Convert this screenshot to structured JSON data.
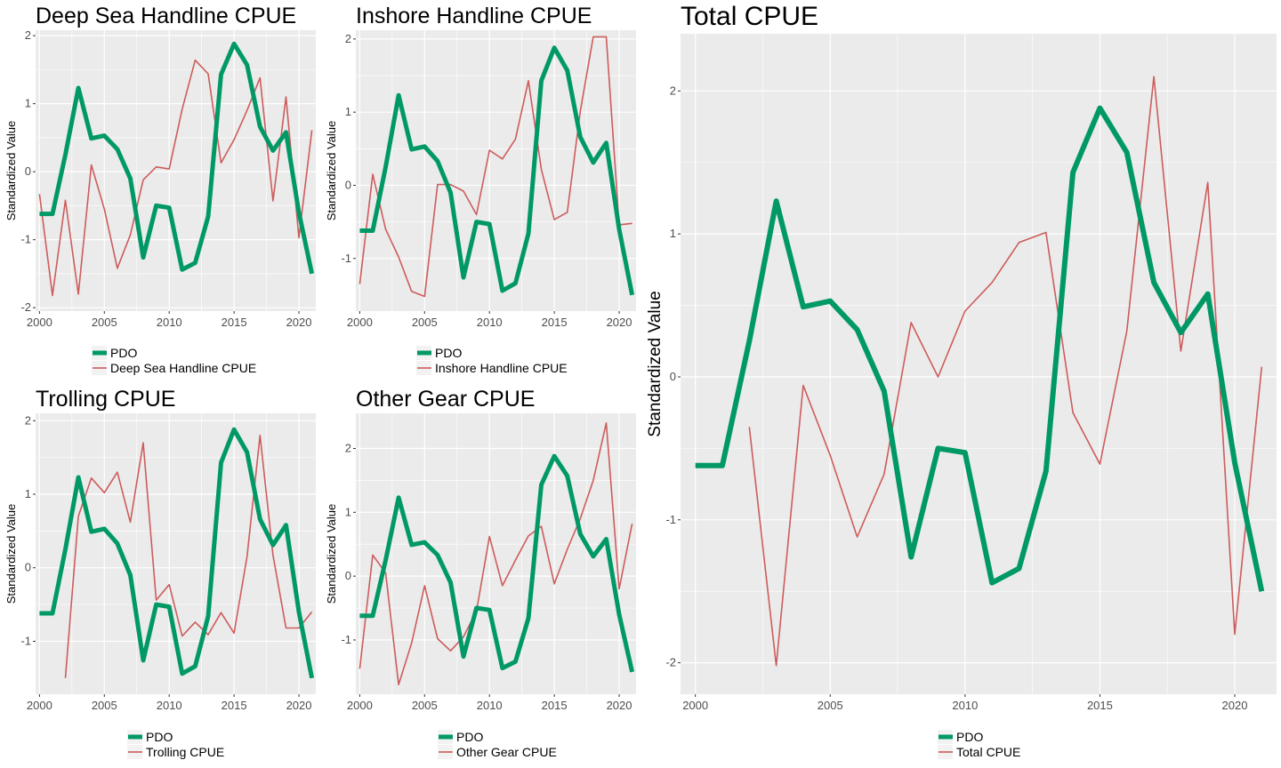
{
  "colors": {
    "pdo": "#009966",
    "cpue": "#cd5c5c",
    "panel_bg": "#ebebeb",
    "grid": "#ffffff"
  },
  "chart_data": [
    {
      "type": "line",
      "title": "Deep Sea Handline CPUE",
      "ylabel": "Standardized Value",
      "xlim": [
        1999.7,
        2021.3
      ],
      "ylim": [
        -2.05,
        2.08
      ],
      "xticks": [
        2000,
        2005,
        2010,
        2015,
        2020
      ],
      "yticks": [
        -2,
        -1,
        0,
        1,
        2
      ],
      "legend_position": "bottom",
      "series": [
        {
          "name": "PDO",
          "x": [
            2000,
            2001,
            2002,
            2003,
            2004,
            2005,
            2006,
            2007,
            2008,
            2009,
            2010,
            2011,
            2012,
            2013,
            2014,
            2015,
            2016,
            2017,
            2018,
            2019,
            2020,
            2021
          ],
          "values": [
            -0.62,
            -0.62,
            0.25,
            1.23,
            0.49,
            0.53,
            0.33,
            -0.1,
            -1.26,
            -0.5,
            -0.53,
            -1.44,
            -1.34,
            -0.66,
            1.43,
            1.88,
            1.57,
            0.66,
            0.31,
            0.58,
            -0.6,
            -1.5
          ]
        },
        {
          "name": "Deep Sea Handline CPUE",
          "x": [
            2000,
            2001,
            2002,
            2003,
            2004,
            2005,
            2006,
            2007,
            2008,
            2009,
            2010,
            2011,
            2012,
            2013,
            2014,
            2015,
            2016,
            2017,
            2018,
            2019,
            2020,
            2021
          ],
          "values": [
            -0.33,
            -1.82,
            -0.42,
            -1.8,
            0.1,
            -0.55,
            -1.42,
            -0.93,
            -0.12,
            0.07,
            0.04,
            0.92,
            1.64,
            1.44,
            0.13,
            0.47,
            0.9,
            1.38,
            -0.43,
            1.1,
            -0.97,
            0.61
          ]
        }
      ]
    },
    {
      "type": "line",
      "title": "Inshore Handline CPUE",
      "ylabel": "Standardized Value",
      "xlim": [
        1999.7,
        2021.3
      ],
      "ylim": [
        -1.72,
        2.12
      ],
      "xticks": [
        2000,
        2005,
        2010,
        2015,
        2020
      ],
      "yticks": [
        -1,
        0,
        1,
        2
      ],
      "legend_position": "bottom",
      "series": [
        {
          "name": "PDO",
          "x": [
            2000,
            2001,
            2002,
            2003,
            2004,
            2005,
            2006,
            2007,
            2008,
            2009,
            2010,
            2011,
            2012,
            2013,
            2014,
            2015,
            2016,
            2017,
            2018,
            2019,
            2020,
            2021
          ],
          "values": [
            -0.62,
            -0.62,
            0.25,
            1.23,
            0.49,
            0.53,
            0.33,
            -0.1,
            -1.26,
            -0.5,
            -0.53,
            -1.44,
            -1.34,
            -0.66,
            1.43,
            1.88,
            1.57,
            0.66,
            0.31,
            0.58,
            -0.6,
            -1.5
          ]
        },
        {
          "name": "Inshore Handline CPUE",
          "x": [
            2000,
            2001,
            2002,
            2003,
            2004,
            2005,
            2006,
            2007,
            2008,
            2009,
            2010,
            2011,
            2012,
            2013,
            2014,
            2015,
            2016,
            2017,
            2018,
            2019,
            2020,
            2021
          ],
          "values": [
            -1.35,
            0.15,
            -0.6,
            -0.98,
            -1.45,
            -1.52,
            0.01,
            0.01,
            -0.08,
            -0.4,
            0.48,
            0.36,
            0.63,
            1.43,
            0.22,
            -0.47,
            -0.37,
            1.01,
            2.03,
            2.03,
            -0.54,
            -0.52
          ]
        }
      ]
    },
    {
      "type": "line",
      "title": "Trolling CPUE",
      "ylabel": "Standardized Value",
      "xlim": [
        1999.7,
        2021.3
      ],
      "ylim": [
        -1.72,
        2.1
      ],
      "xticks": [
        2000,
        2005,
        2010,
        2015,
        2020
      ],
      "yticks": [
        -1,
        0,
        1,
        2
      ],
      "legend_position": "bottom",
      "series": [
        {
          "name": "PDO",
          "x": [
            2000,
            2001,
            2002,
            2003,
            2004,
            2005,
            2006,
            2007,
            2008,
            2009,
            2010,
            2011,
            2012,
            2013,
            2014,
            2015,
            2016,
            2017,
            2018,
            2019,
            2020,
            2021
          ],
          "values": [
            -0.62,
            -0.62,
            0.25,
            1.23,
            0.49,
            0.53,
            0.33,
            -0.1,
            -1.26,
            -0.5,
            -0.53,
            -1.44,
            -1.34,
            -0.66,
            1.43,
            1.88,
            1.57,
            0.66,
            0.31,
            0.58,
            -0.6,
            -1.5
          ]
        },
        {
          "name": "Trolling CPUE",
          "x": [
            2002,
            2003,
            2004,
            2005,
            2006,
            2007,
            2008,
            2009,
            2010,
            2011,
            2012,
            2013,
            2014,
            2015,
            2016,
            2017,
            2018,
            2019,
            2020,
            2021
          ],
          "values": [
            -1.5,
            0.7,
            1.22,
            1.02,
            1.3,
            0.62,
            1.7,
            -0.44,
            -0.23,
            -0.93,
            -0.74,
            -0.91,
            -0.61,
            -0.89,
            0.15,
            1.8,
            0.17,
            -0.82,
            -0.82,
            -0.6
          ]
        }
      ]
    },
    {
      "type": "line",
      "title": "Other Gear CPUE",
      "ylabel": "Standardized Value",
      "xlim": [
        1999.7,
        2021.3
      ],
      "ylim": [
        -1.85,
        2.55
      ],
      "xticks": [
        2000,
        2005,
        2010,
        2015,
        2020
      ],
      "yticks": [
        -1,
        0,
        1,
        2
      ],
      "legend_position": "bottom",
      "series": [
        {
          "name": "PDO",
          "x": [
            2000,
            2001,
            2002,
            2003,
            2004,
            2005,
            2006,
            2007,
            2008,
            2009,
            2010,
            2011,
            2012,
            2013,
            2014,
            2015,
            2016,
            2017,
            2018,
            2019,
            2020,
            2021
          ],
          "values": [
            -0.62,
            -0.62,
            0.25,
            1.23,
            0.49,
            0.53,
            0.33,
            -0.1,
            -1.26,
            -0.5,
            -0.53,
            -1.44,
            -1.34,
            -0.66,
            1.43,
            1.88,
            1.57,
            0.66,
            0.31,
            0.58,
            -0.6,
            -1.5
          ]
        },
        {
          "name": "Other Gear CPUE",
          "x": [
            2000,
            2001,
            2002,
            2003,
            2004,
            2005,
            2006,
            2007,
            2008,
            2009,
            2010,
            2011,
            2012,
            2013,
            2014,
            2015,
            2016,
            2017,
            2018,
            2019,
            2020,
            2021
          ],
          "values": [
            -1.45,
            0.33,
            0.05,
            -1.7,
            -1.05,
            -0.15,
            -0.98,
            -1.17,
            -0.95,
            -0.55,
            0.62,
            -0.15,
            0.25,
            0.63,
            0.78,
            -0.12,
            0.42,
            0.9,
            1.5,
            2.4,
            -0.2,
            0.82
          ]
        }
      ]
    },
    {
      "type": "line",
      "title": "Total CPUE",
      "ylabel": "Standardized Value",
      "xlim": [
        1999.45,
        2021.55
      ],
      "ylim": [
        -2.22,
        2.4
      ],
      "xticks": [
        2000,
        2005,
        2010,
        2015,
        2020
      ],
      "yticks": [
        -2,
        -1,
        0,
        1,
        2
      ],
      "legend_position": "bottom",
      "series": [
        {
          "name": "PDO",
          "x": [
            2000,
            2001,
            2002,
            2003,
            2004,
            2005,
            2006,
            2007,
            2008,
            2009,
            2010,
            2011,
            2012,
            2013,
            2014,
            2015,
            2016,
            2017,
            2018,
            2019,
            2020,
            2021
          ],
          "values": [
            -0.62,
            -0.62,
            0.25,
            1.23,
            0.49,
            0.53,
            0.33,
            -0.1,
            -1.26,
            -0.5,
            -0.53,
            -1.44,
            -1.34,
            -0.66,
            1.43,
            1.88,
            1.57,
            0.66,
            0.31,
            0.58,
            -0.6,
            -1.5
          ]
        },
        {
          "name": "Total CPUE",
          "x": [
            2002,
            2003,
            2004,
            2005,
            2006,
            2007,
            2008,
            2009,
            2010,
            2011,
            2012,
            2013,
            2014,
            2015,
            2016,
            2017,
            2018,
            2019,
            2020,
            2021
          ],
          "values": [
            -0.35,
            -2.02,
            -0.06,
            -0.55,
            -1.12,
            -0.68,
            0.38,
            0.0,
            0.46,
            0.66,
            0.94,
            1.01,
            -0.25,
            -0.61,
            0.32,
            2.1,
            0.18,
            1.36,
            -1.8,
            0.07
          ]
        }
      ]
    }
  ]
}
